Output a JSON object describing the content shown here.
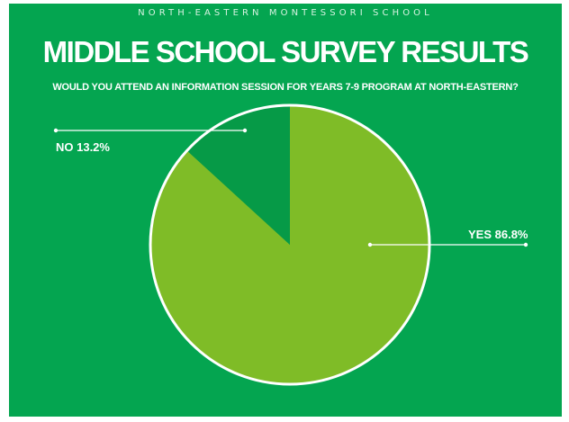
{
  "header": {
    "school": "NORTH-EASTERN MONTESSORI SCHOOL",
    "title": "MIDDLE SCHOOL SURVEY RESULTS",
    "question": "WOULD YOU ATTEND AN INFORMATION SESSION FOR YEARS 7-9 PROGRAM AT NORTH-EASTERN?"
  },
  "colors": {
    "background": "#04a550",
    "yes": "#7fbc27",
    "no": "#069a47",
    "outline": "#ffffff"
  },
  "chart_data": {
    "type": "pie",
    "title": "MIDDLE SCHOOL SURVEY RESULTS",
    "slices": [
      {
        "label": "YES",
        "value": 86.8,
        "display": "YES 86.8%"
      },
      {
        "label": "NO",
        "value": 13.2,
        "display": "NO 13.2%"
      }
    ]
  }
}
